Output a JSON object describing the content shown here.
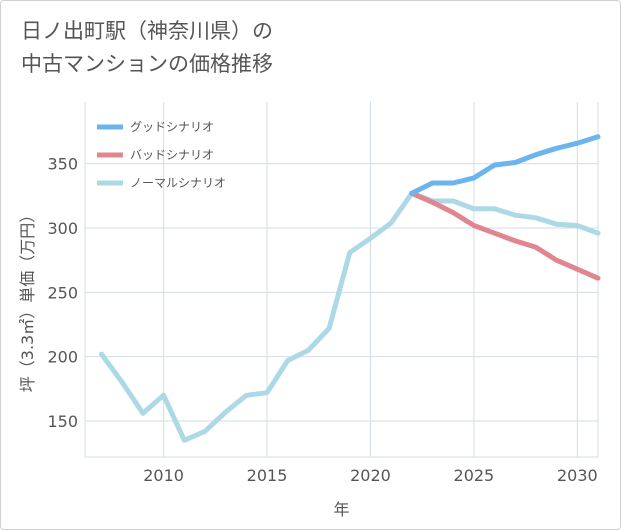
{
  "title": {
    "line1": "日ノ出町駅（神奈川県）の",
    "line2": "中古マンションの価格推移"
  },
  "chart_data": {
    "type": "line",
    "xlabel": "年",
    "ylabel": "坪（3.3㎡）単価（万円）",
    "xlim": [
      2006.2,
      2031
    ],
    "ylim": [
      122,
      398
    ],
    "x_ticks": [
      2010,
      2015,
      2020,
      2025,
      2030
    ],
    "y_ticks": [
      150,
      200,
      250,
      300,
      350
    ],
    "grid": true,
    "legend_position": "top-left",
    "series": [
      {
        "name": "グッドシナリオ",
        "color": "#6cb4ee",
        "x": [
          2022,
          2023,
          2024,
          2025,
          2026,
          2027,
          2028,
          2029,
          2030,
          2031
        ],
        "values": [
          327,
          335,
          335,
          339,
          349,
          351,
          357,
          362,
          366,
          371
        ]
      },
      {
        "name": "バッドシナリオ",
        "color": "#e0868f",
        "x": [
          2022,
          2023,
          2024,
          2025,
          2026,
          2027,
          2028,
          2029,
          2030,
          2031
        ],
        "values": [
          327,
          320,
          312,
          302,
          296,
          290,
          285,
          275,
          268,
          261
        ]
      },
      {
        "name": "ノーマルシナリオ",
        "color": "#add8e6",
        "x": [
          2007,
          2008,
          2009,
          2010,
          2011,
          2012,
          2013,
          2014,
          2015,
          2016,
          2017,
          2018,
          2019,
          2020,
          2021,
          2022,
          2023,
          2024,
          2025,
          2026,
          2027,
          2028,
          2029,
          2030,
          2031
        ],
        "values": [
          202,
          180,
          156,
          170,
          135,
          142,
          157,
          170,
          172,
          197,
          205,
          222,
          281,
          292,
          304,
          327,
          321,
          321,
          315,
          315,
          310,
          308,
          303,
          302,
          296
        ]
      }
    ]
  }
}
